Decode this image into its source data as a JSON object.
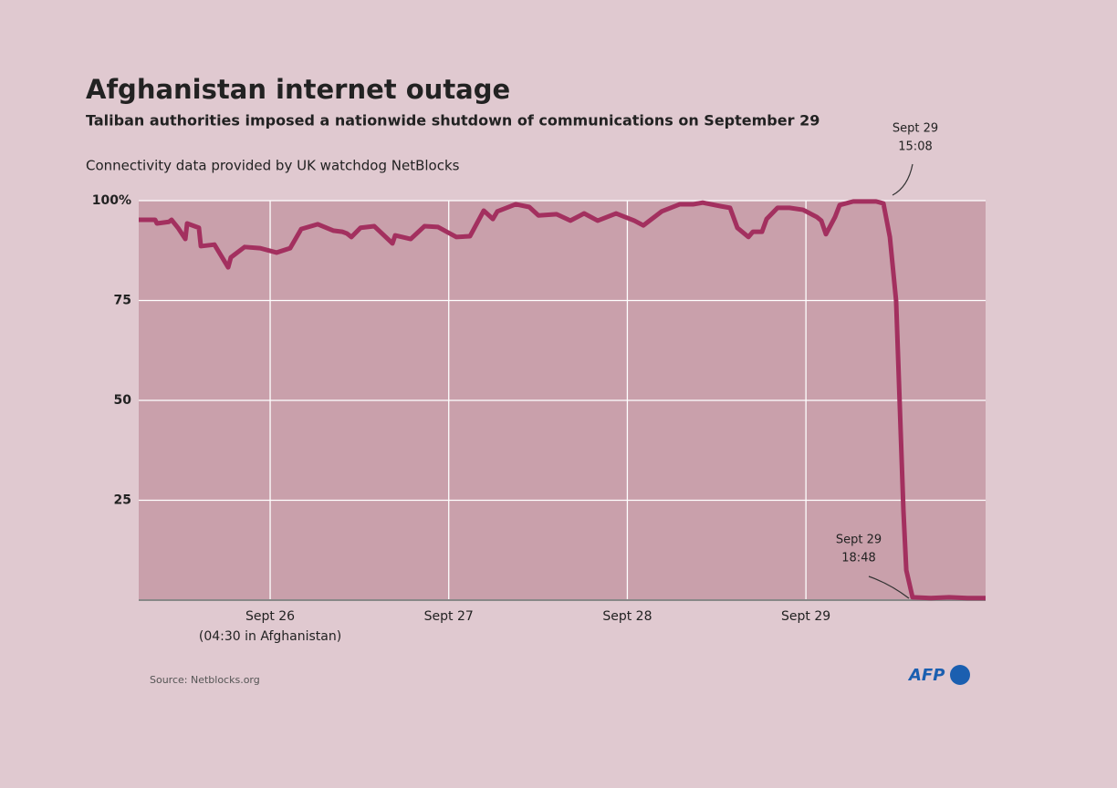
{
  "chart_data": {
    "type": "line",
    "title": "Afghanistan internet outage",
    "subtitle": "Taliban authorities imposed a nationwide shutdown of communications on September 29",
    "description": "Connectivity data provided by UK watchdog NetBlocks",
    "source": "Source: Netblocks.org",
    "logo": "AFP",
    "x": [
      25.264,
      25.356,
      25.366,
      25.433,
      25.448,
      25.484,
      25.525,
      25.535,
      25.601,
      25.612,
      25.688,
      25.765,
      25.78,
      25.857,
      25.944,
      26.036,
      26.112,
      26.174,
      26.266,
      26.353,
      26.404,
      26.429,
      26.455,
      26.506,
      26.583,
      26.685,
      26.7,
      26.787,
      26.864,
      26.94,
      27.042,
      27.119,
      27.196,
      27.247,
      27.272,
      27.375,
      27.451,
      27.502,
      27.604,
      27.681,
      27.758,
      27.834,
      27.937,
      28.039,
      28.09,
      28.192,
      28.294,
      28.371,
      28.422,
      28.524,
      28.575,
      28.616,
      28.678,
      28.703,
      28.754,
      28.78,
      28.841,
      28.908,
      28.984,
      29.061,
      29.086,
      29.112,
      29.163,
      29.189,
      29.265,
      29.393,
      29.434,
      29.47,
      29.505,
      29.546,
      29.562,
      29.597,
      29.7,
      29.802,
      29.904,
      30.006
    ],
    "series": [
      {
        "name": "Connectivity",
        "color": "#a3305f",
        "values": [
          95.2,
          95.2,
          94.3,
          94.7,
          95.2,
          93.2,
          90.4,
          94.3,
          93.2,
          88.6,
          89.0,
          83.3,
          85.8,
          88.4,
          88.1,
          87.0,
          88.1,
          92.9,
          94.1,
          92.5,
          92.2,
          91.8,
          90.9,
          93.2,
          93.6,
          89.3,
          91.3,
          90.4,
          93.6,
          93.4,
          90.9,
          91.1,
          97.5,
          95.4,
          97.3,
          99.1,
          98.4,
          96.3,
          96.6,
          95.0,
          96.8,
          95.0,
          96.8,
          95.0,
          93.8,
          97.3,
          99.1,
          99.1,
          99.5,
          98.6,
          98.2,
          93.2,
          90.9,
          92.2,
          92.2,
          95.4,
          98.2,
          98.2,
          97.7,
          95.9,
          95.0,
          91.6,
          95.9,
          98.9,
          99.8,
          99.8,
          99.3,
          90.9,
          74.9,
          22.4,
          7.5,
          0.7,
          0.5,
          0.7,
          0.5,
          0.5
        ]
      }
    ],
    "xlim": [
      25.264,
      30.006
    ],
    "xticks": [
      {
        "value": 26,
        "label": "Sept 26"
      },
      {
        "value": 27,
        "label": "Sept 27"
      },
      {
        "value": 28,
        "label": "Sept 28"
      },
      {
        "value": 29,
        "label": "Sept 29"
      }
    ],
    "xtick_note": "(04:30 in Afghanistan)",
    "ylim": [
      0,
      100
    ],
    "yticks": [
      {
        "value": 100,
        "label": "100%"
      },
      75,
      50,
      25
    ],
    "grid": true,
    "annotations": [
      {
        "lines": [
          "Sept 29",
          "15:08"
        ]
      },
      {
        "lines": [
          "Sept 29",
          "18:48"
        ]
      }
    ]
  }
}
